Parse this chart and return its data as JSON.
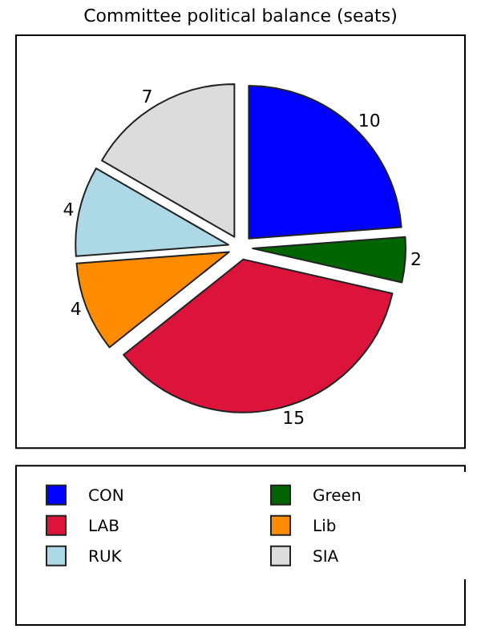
{
  "chart_data": {
    "type": "pie",
    "title": "Committee political balance (seats)",
    "categories": [
      "CON",
      "Green",
      "LAB",
      "Lib",
      "RUK",
      "SIA"
    ],
    "values": [
      10,
      2,
      15,
      4,
      4,
      7
    ],
    "colors": [
      "#0000ff",
      "#006400",
      "#dc143c",
      "#ff8c00",
      "#add8e6",
      "#dcdcdc"
    ],
    "data_labels": true,
    "legend": "bottom"
  }
}
